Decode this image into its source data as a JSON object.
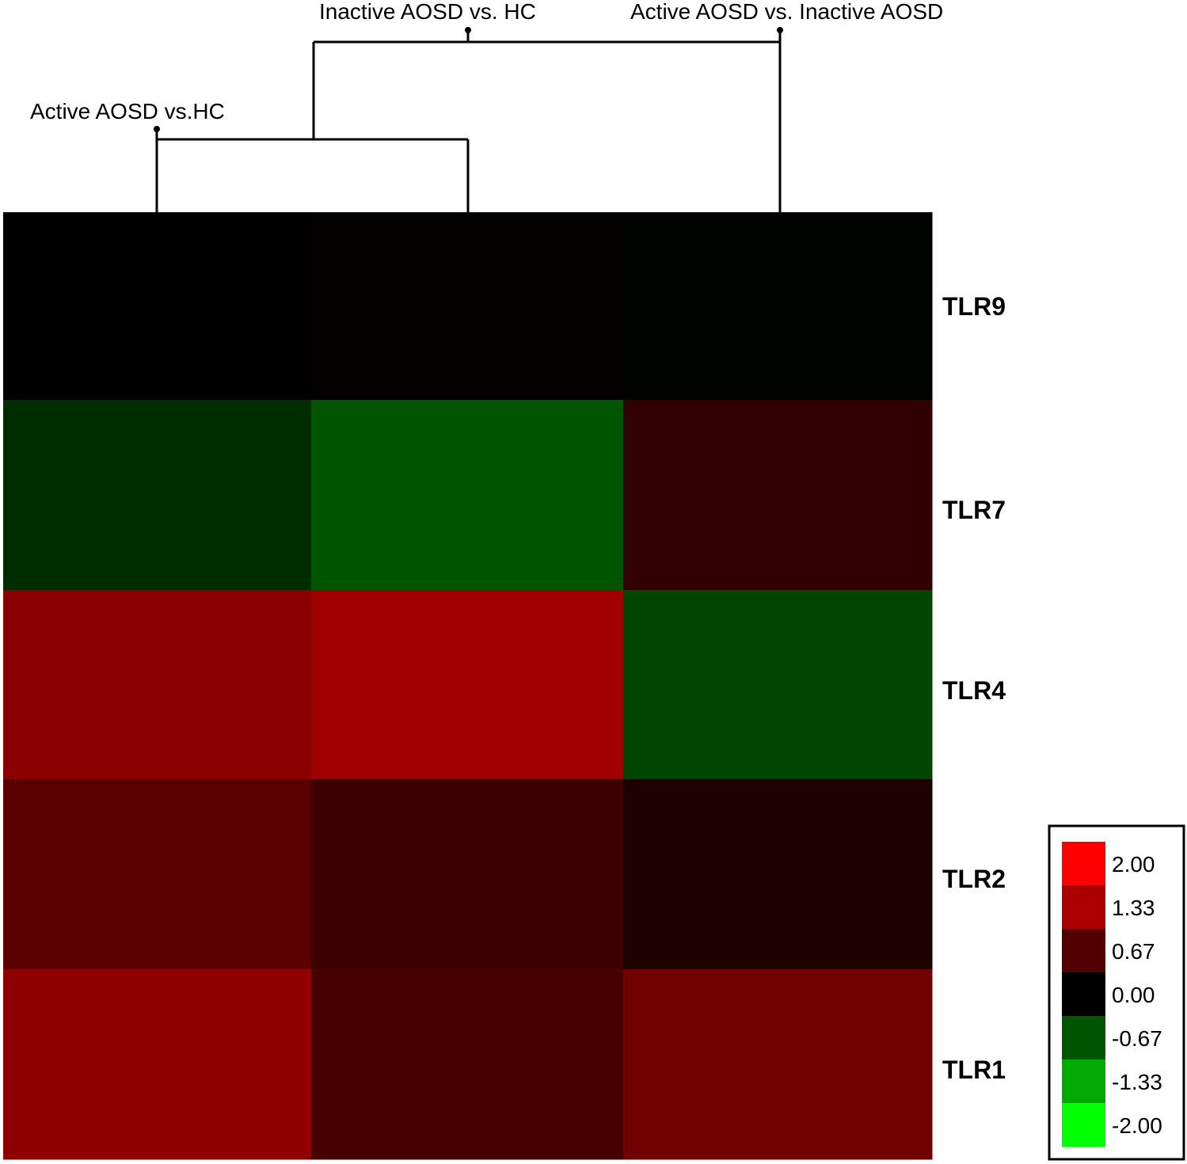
{
  "chart_data": {
    "type": "heatmap",
    "columns": [
      "Active AOSD vs.HC",
      "Inactive AOSD vs. HC",
      "Active AOSD vs. Inactive AOSD"
    ],
    "rows": [
      "TLR9",
      "TLR7",
      "TLR4",
      "TLR2",
      "TLR1"
    ],
    "values": [
      [
        0.0,
        0.03,
        -0.03
      ],
      [
        -0.45,
        -0.85,
        0.5
      ],
      [
        1.4,
        1.6,
        -0.7
      ],
      [
        0.9,
        0.6,
        0.3
      ],
      [
        1.45,
        0.7,
        1.15
      ]
    ],
    "dendrogram": {
      "merges": [
        [
          "Active AOSD vs.HC",
          "Inactive AOSD vs. HC"
        ],
        [
          "cluster-1",
          "Active AOSD vs. Inactive AOSD"
        ]
      ]
    },
    "color_scale": {
      "min": -2.0,
      "max": 2.0,
      "low_color": "#00ff00",
      "mid_color": "#000000",
      "high_color": "#ff0000"
    },
    "legend": {
      "placement": "bottom-right",
      "entries": [
        {
          "label": "2.00",
          "color": "#ff0000"
        },
        {
          "label": "1.33",
          "color": "#aa0000"
        },
        {
          "label": "0.67",
          "color": "#550000"
        },
        {
          "label": "0.00",
          "color": "#000000"
        },
        {
          "label": "-0.67",
          "color": "#005500"
        },
        {
          "label": "-1.33",
          "color": "#00aa00"
        },
        {
          "label": "-2.00",
          "color": "#00ff00"
        }
      ]
    }
  }
}
